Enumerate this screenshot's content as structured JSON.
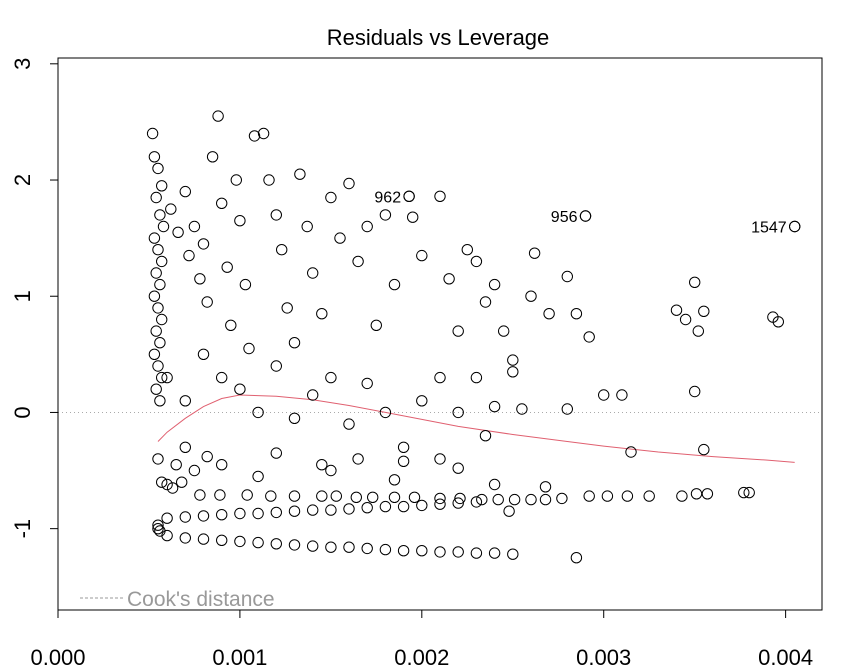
{
  "chart_data": {
    "type": "scatter",
    "title": "Residuals vs Leverage",
    "xlabel": "",
    "ylabel": "",
    "xlim": [
      0.0,
      0.0042
    ],
    "ylim": [
      -1.7,
      3.05
    ],
    "x_ticks": [
      0.0,
      0.001,
      0.002,
      0.003,
      0.004
    ],
    "x_tick_labels": [
      "0.000",
      "0.001",
      "0.002",
      "0.003",
      "0.004"
    ],
    "y_ticks": [
      -1,
      0,
      1,
      2,
      3
    ],
    "y_tick_labels": [
      "-1",
      "0",
      "1",
      "2",
      "3"
    ],
    "grid": false,
    "reference_lines": {
      "h": 0,
      "v": 0,
      "style": "dotted",
      "color": "#aaaaaa"
    },
    "legend": {
      "text": "Cook's distance",
      "placement": "bottom-left",
      "line_style": "dashed",
      "color": "#999999"
    },
    "colors": {
      "points": "#000000",
      "smooth": "#e06070",
      "reference": "#aaaaaa"
    },
    "labeled_points": [
      {
        "label": "962",
        "x": 0.00193,
        "y": 1.86
      },
      {
        "label": "956",
        "x": 0.0029,
        "y": 1.69
      },
      {
        "label": "1547",
        "x": 0.00405,
        "y": 1.6
      }
    ],
    "smoother": {
      "x": [
        0.00055,
        0.0006,
        0.0007,
        0.0008,
        0.0009,
        0.001,
        0.0012,
        0.0014,
        0.0016,
        0.0018,
        0.002,
        0.0022,
        0.0025,
        0.0028,
        0.003,
        0.0033,
        0.0036,
        0.0039,
        0.00405
      ],
      "y": [
        -0.25,
        -0.17,
        -0.05,
        0.05,
        0.12,
        0.15,
        0.14,
        0.11,
        0.06,
        0.0,
        -0.06,
        -0.12,
        -0.19,
        -0.25,
        -0.29,
        -0.34,
        -0.38,
        -0.41,
        -0.43
      ]
    },
    "series": [
      {
        "points": [
          [
            0.00078,
            -0.71
          ],
          [
            0.00089,
            -0.71
          ],
          [
            0.00104,
            -0.71
          ],
          [
            0.00117,
            -0.72
          ],
          [
            0.0013,
            -0.72
          ],
          [
            0.00145,
            -0.72
          ],
          [
            0.00153,
            -0.72
          ],
          [
            0.00164,
            -0.73
          ],
          [
            0.00173,
            -0.73
          ],
          [
            0.00185,
            -0.73
          ],
          [
            0.00196,
            -0.73
          ],
          [
            0.0021,
            -0.74
          ],
          [
            0.00221,
            -0.74
          ],
          [
            0.00233,
            -0.75
          ],
          [
            0.00242,
            -0.75
          ],
          [
            0.00251,
            -0.75
          ],
          [
            0.0026,
            -0.75
          ],
          [
            0.00268,
            -0.75
          ],
          [
            0.00277,
            -0.74
          ],
          [
            0.00292,
            -0.72
          ],
          [
            0.00302,
            -0.72
          ],
          [
            0.00313,
            -0.72
          ],
          [
            0.00325,
            -0.72
          ],
          [
            0.00343,
            -0.72
          ],
          [
            0.00351,
            -0.7
          ],
          [
            0.00357,
            -0.7
          ],
          [
            0.00377,
            -0.69
          ],
          [
            0.0038,
            -0.69
          ],
          [
            0.0006,
            -0.91
          ],
          [
            0.0007,
            -0.9
          ],
          [
            0.0008,
            -0.89
          ],
          [
            0.0009,
            -0.88
          ],
          [
            0.001,
            -0.87
          ],
          [
            0.0011,
            -0.87
          ],
          [
            0.0012,
            -0.86
          ],
          [
            0.0013,
            -0.85
          ],
          [
            0.0014,
            -0.84
          ],
          [
            0.0015,
            -0.84
          ],
          [
            0.0016,
            -0.83
          ],
          [
            0.0017,
            -0.82
          ],
          [
            0.0018,
            -0.81
          ],
          [
            0.0019,
            -0.81
          ],
          [
            0.002,
            -0.8
          ],
          [
            0.0021,
            -0.79
          ],
          [
            0.0022,
            -0.78
          ],
          [
            0.0023,
            -0.77
          ],
          [
            0.00055,
            -0.97
          ],
          [
            0.00055,
            -1.0
          ],
          [
            0.00056,
            -1.02
          ],
          [
            0.0006,
            -1.06
          ],
          [
            0.0007,
            -1.08
          ],
          [
            0.0008,
            -1.09
          ],
          [
            0.0009,
            -1.1
          ],
          [
            0.001,
            -1.11
          ],
          [
            0.0011,
            -1.12
          ],
          [
            0.0012,
            -1.13
          ],
          [
            0.0013,
            -1.14
          ],
          [
            0.0014,
            -1.15
          ],
          [
            0.0015,
            -1.16
          ],
          [
            0.0016,
            -1.16
          ],
          [
            0.0017,
            -1.17
          ],
          [
            0.0018,
            -1.18
          ],
          [
            0.0019,
            -1.19
          ],
          [
            0.002,
            -1.19
          ],
          [
            0.0021,
            -1.2
          ],
          [
            0.0022,
            -1.2
          ],
          [
            0.0023,
            -1.21
          ],
          [
            0.0024,
            -1.21
          ],
          [
            0.0025,
            -1.22
          ],
          [
            0.00285,
            -1.25
          ],
          [
            0.00248,
            -0.85
          ],
          [
            0.00268,
            -0.64
          ],
          [
            0.00052,
            2.4
          ],
          [
            0.00053,
            2.2
          ],
          [
            0.00055,
            2.1
          ],
          [
            0.00057,
            1.95
          ],
          [
            0.00054,
            1.85
          ],
          [
            0.00056,
            1.7
          ],
          [
            0.00058,
            1.6
          ],
          [
            0.00053,
            1.5
          ],
          [
            0.00055,
            1.4
          ],
          [
            0.00057,
            1.3
          ],
          [
            0.00054,
            1.2
          ],
          [
            0.00056,
            1.1
          ],
          [
            0.00053,
            1.0
          ],
          [
            0.00055,
            0.9
          ],
          [
            0.00057,
            0.8
          ],
          [
            0.00054,
            0.7
          ],
          [
            0.00056,
            0.6
          ],
          [
            0.00053,
            0.5
          ],
          [
            0.00055,
            0.4
          ],
          [
            0.00057,
            0.3
          ],
          [
            0.00054,
            0.2
          ],
          [
            0.00056,
            0.1
          ],
          [
            0.00055,
            -0.4
          ],
          [
            0.00057,
            -0.6
          ],
          [
            0.0006,
            -0.62
          ],
          [
            0.00065,
            -0.45
          ],
          [
            0.0007,
            -0.3
          ],
          [
            0.00062,
            1.75
          ],
          [
            0.00066,
            1.55
          ],
          [
            0.0007,
            1.9
          ],
          [
            0.00072,
            1.35
          ],
          [
            0.00075,
            1.6
          ],
          [
            0.00078,
            1.15
          ],
          [
            0.0008,
            1.45
          ],
          [
            0.00082,
            0.95
          ],
          [
            0.00085,
            2.2
          ],
          [
            0.00088,
            2.55
          ],
          [
            0.0009,
            1.8
          ],
          [
            0.00093,
            1.25
          ],
          [
            0.00095,
            0.75
          ],
          [
            0.00098,
            2.0
          ],
          [
            0.001,
            1.65
          ],
          [
            0.00103,
            1.1
          ],
          [
            0.00105,
            0.55
          ],
          [
            0.00108,
            2.38
          ],
          [
            0.00113,
            2.4
          ],
          [
            0.00116,
            2.0
          ],
          [
            0.0012,
            1.7
          ],
          [
            0.00123,
            1.4
          ],
          [
            0.00126,
            0.9
          ],
          [
            0.0013,
            0.6
          ],
          [
            0.00133,
            2.05
          ],
          [
            0.00137,
            1.6
          ],
          [
            0.0014,
            1.2
          ],
          [
            0.00145,
            0.85
          ],
          [
            0.0015,
            1.85
          ],
          [
            0.00155,
            1.5
          ],
          [
            0.0016,
            1.97
          ],
          [
            0.00165,
            1.3
          ],
          [
            0.0017,
            1.6
          ],
          [
            0.00175,
            0.75
          ],
          [
            0.0018,
            1.7
          ],
          [
            0.00185,
            1.1
          ],
          [
            0.00193,
            1.86
          ],
          [
            0.00195,
            1.68
          ],
          [
            0.002,
            1.35
          ],
          [
            0.0021,
            1.86
          ],
          [
            0.00215,
            1.15
          ],
          [
            0.0022,
            0.7
          ],
          [
            0.00225,
            1.4
          ],
          [
            0.0023,
            1.3
          ],
          [
            0.00235,
            0.95
          ],
          [
            0.0024,
            1.1
          ],
          [
            0.00245,
            0.7
          ],
          [
            0.0025,
            0.45
          ],
          [
            0.0026,
            1.0
          ],
          [
            0.00262,
            1.37
          ],
          [
            0.0027,
            0.85
          ],
          [
            0.0028,
            1.17
          ],
          [
            0.00285,
            0.85
          ],
          [
            0.0029,
            1.69
          ],
          [
            0.00292,
            0.65
          ],
          [
            0.0034,
            0.88
          ],
          [
            0.00345,
            0.8
          ],
          [
            0.0035,
            1.12
          ],
          [
            0.00352,
            0.7
          ],
          [
            0.00355,
            0.87
          ],
          [
            0.00393,
            0.82
          ],
          [
            0.00396,
            0.78
          ],
          [
            0.00405,
            1.6
          ],
          [
            0.0006,
            0.3
          ],
          [
            0.0007,
            0.1
          ],
          [
            0.0008,
            0.5
          ],
          [
            0.0009,
            0.3
          ],
          [
            0.001,
            0.2
          ],
          [
            0.0011,
            0.0
          ],
          [
            0.0012,
            0.4
          ],
          [
            0.0013,
            -0.05
          ],
          [
            0.0014,
            0.15
          ],
          [
            0.0015,
            0.3
          ],
          [
            0.0016,
            -0.1
          ],
          [
            0.0017,
            0.25
          ],
          [
            0.0018,
            0.0
          ],
          [
            0.0019,
            -0.3
          ],
          [
            0.002,
            0.1
          ],
          [
            0.0021,
            0.3
          ],
          [
            0.0022,
            0.0
          ],
          [
            0.0023,
            0.3
          ],
          [
            0.00235,
            -0.2
          ],
          [
            0.0024,
            0.05
          ],
          [
            0.0025,
            0.35
          ],
          [
            0.00255,
            0.03
          ],
          [
            0.0028,
            0.03
          ],
          [
            0.003,
            0.15
          ],
          [
            0.0031,
            0.15
          ],
          [
            0.0035,
            0.18
          ],
          [
            0.00315,
            -0.34
          ],
          [
            0.00355,
            -0.32
          ],
          [
            0.0021,
            -0.4
          ],
          [
            0.0022,
            -0.48
          ],
          [
            0.0019,
            -0.42
          ],
          [
            0.0015,
            -0.5
          ],
          [
            0.0012,
            -0.35
          ],
          [
            0.0009,
            -0.45
          ],
          [
            0.0011,
            -0.55
          ],
          [
            0.00075,
            -0.5
          ],
          [
            0.00082,
            -0.38
          ],
          [
            0.00068,
            -0.6
          ],
          [
            0.00063,
            -0.65
          ],
          [
            0.0024,
            -0.62
          ],
          [
            0.00185,
            -0.58
          ],
          [
            0.00145,
            -0.45
          ],
          [
            0.00165,
            -0.4
          ]
        ]
      }
    ]
  }
}
